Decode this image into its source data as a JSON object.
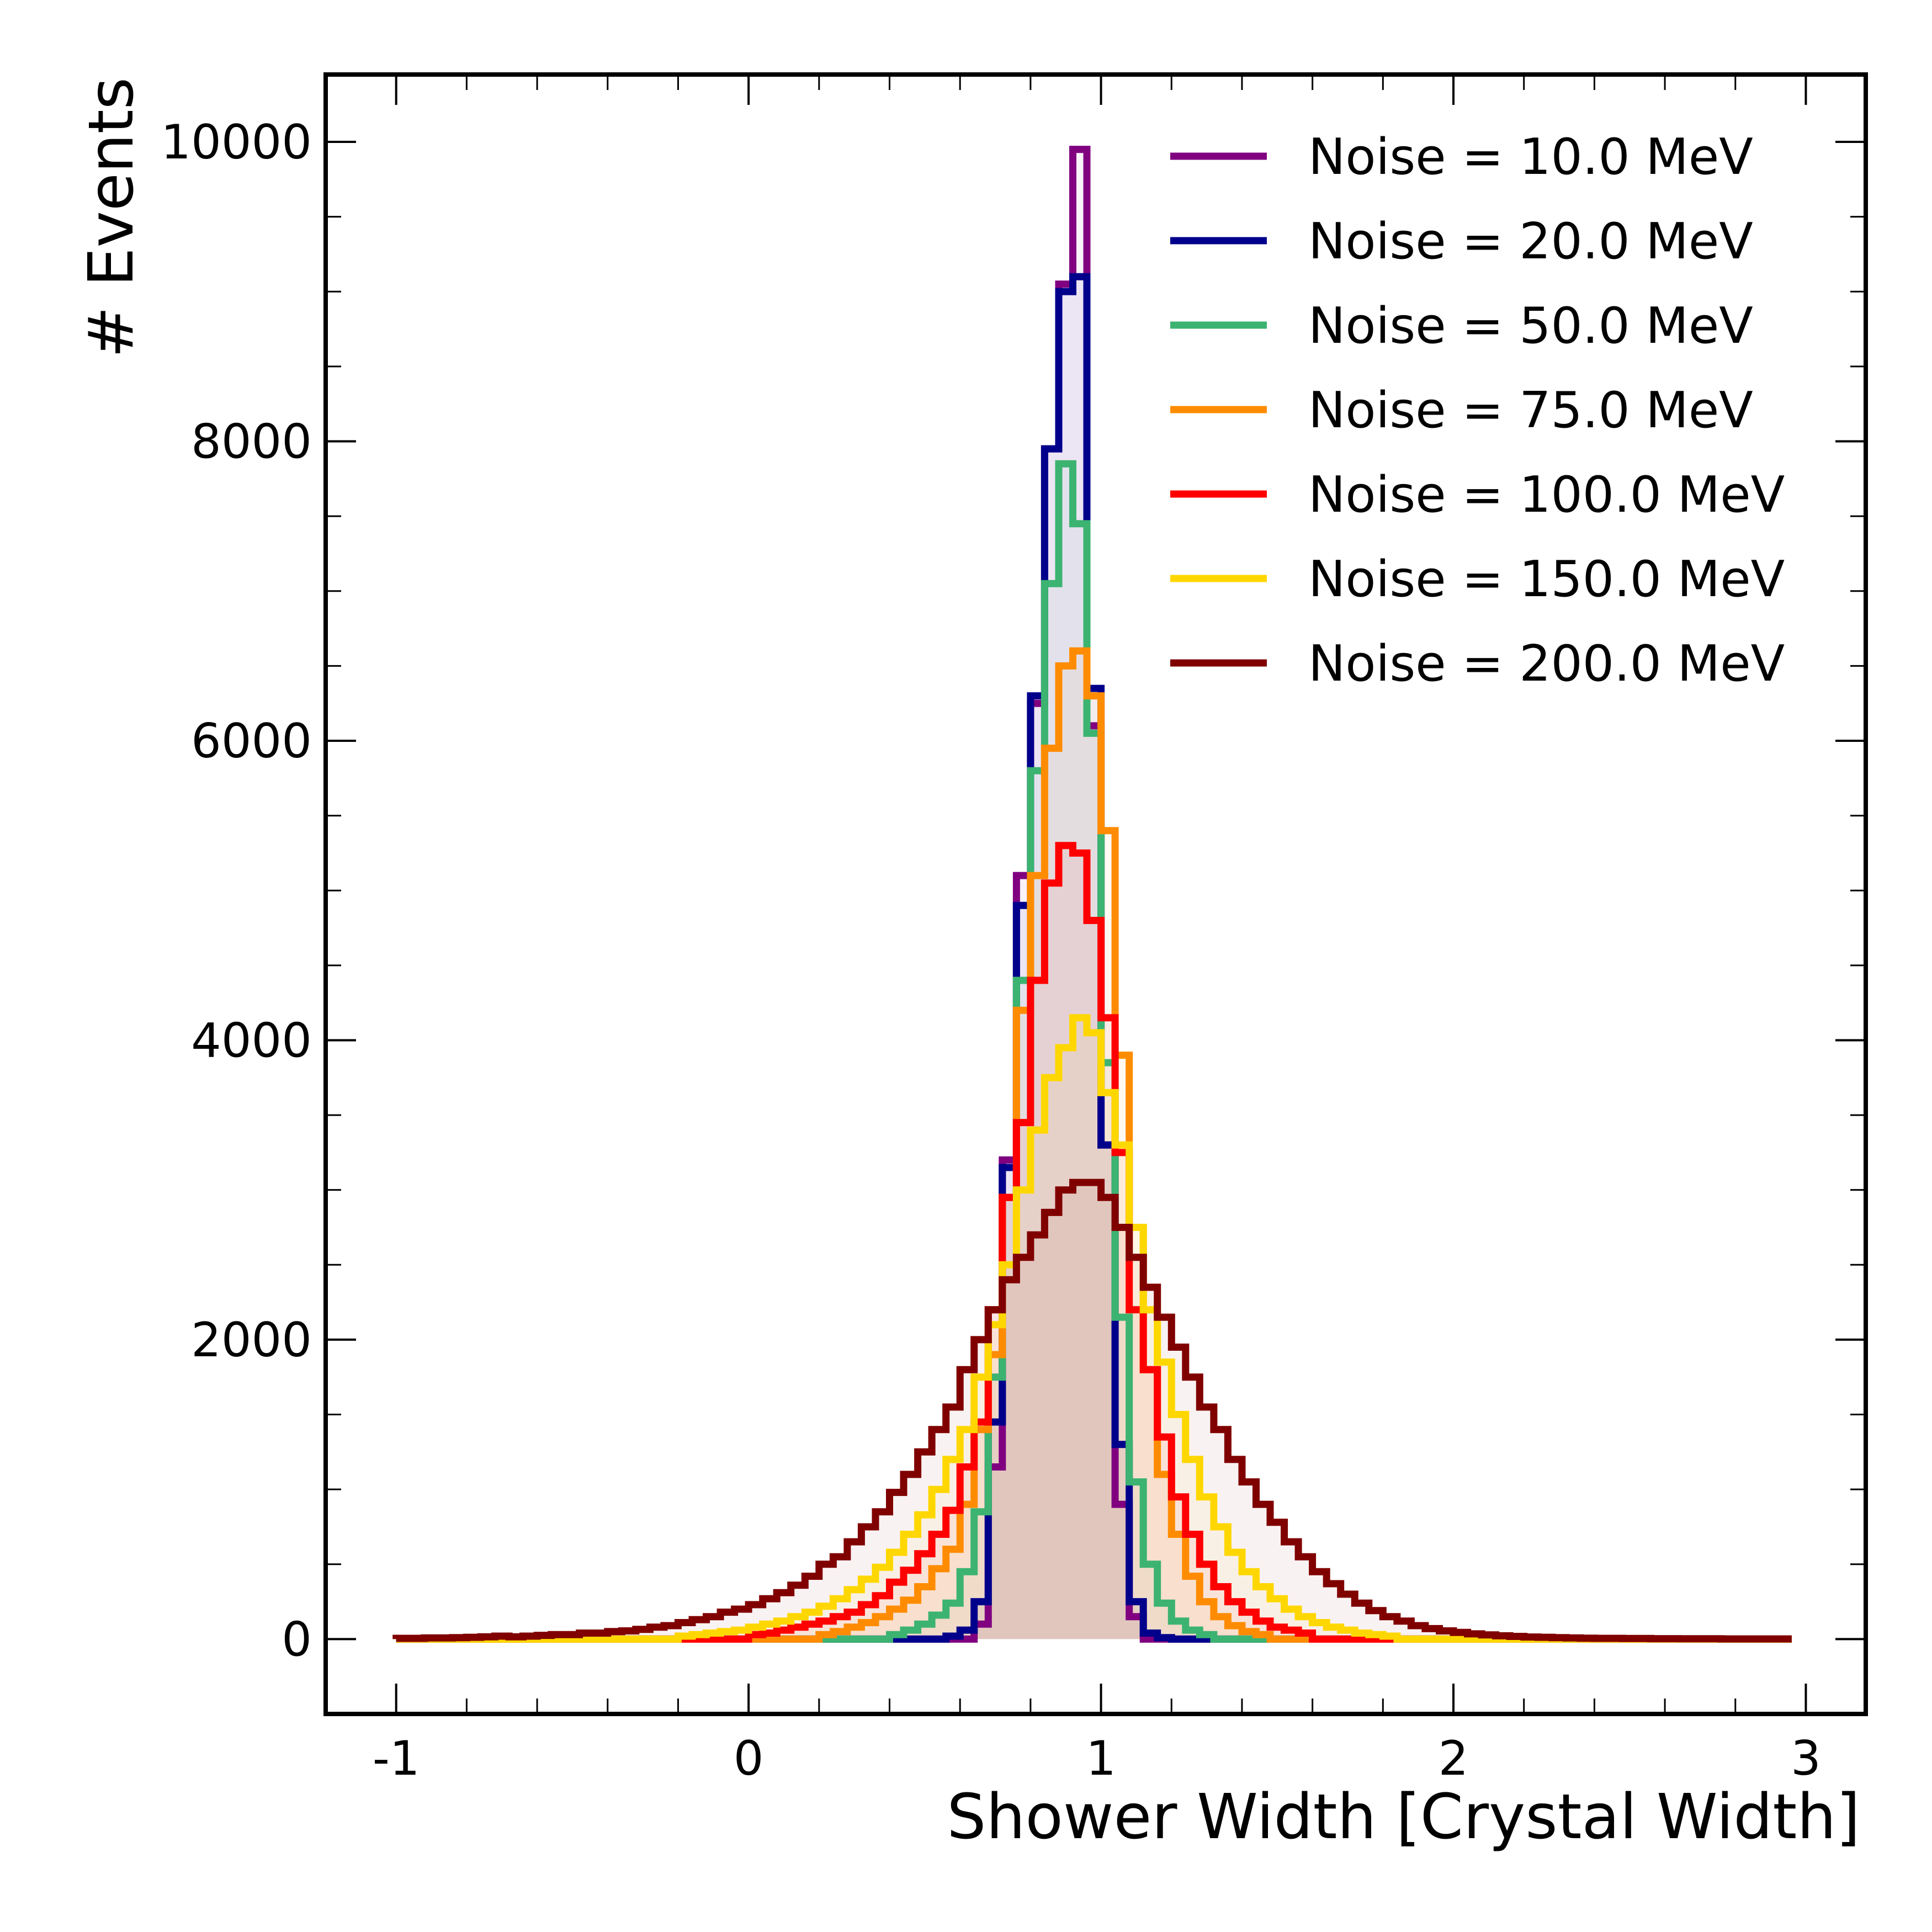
{
  "chart_data": {
    "type": "step-histogram",
    "xlabel": "Shower Width [Crystal Width]",
    "ylabel": "# Events",
    "xlim": [
      -1.2,
      3.17
    ],
    "ylim": [
      -500,
      10450
    ],
    "x_ticks": [
      -1,
      0,
      1,
      2,
      3
    ],
    "x_tick_labels": [
      "-1",
      "0",
      "1",
      "2",
      "3"
    ],
    "y_ticks": [
      0,
      2000,
      4000,
      6000,
      8000,
      10000
    ],
    "y_tick_labels": [
      "0",
      "2000",
      "4000",
      "6000",
      "8000",
      "10000"
    ],
    "legend_position": "top-right",
    "grid": false,
    "bins": {
      "start": -1.0,
      "width": 0.04,
      "count": 99
    },
    "series": [
      {
        "name": "Noise = 10.0 MeV",
        "color": "#800080",
        "bins": [
          [
            0.64,
            100
          ],
          [
            0.68,
            1150
          ],
          [
            0.72,
            3200
          ],
          [
            0.76,
            5100
          ],
          [
            0.8,
            6250
          ],
          [
            0.84,
            7950
          ],
          [
            0.88,
            9050
          ],
          [
            0.92,
            9950
          ],
          [
            0.96,
            6100
          ],
          [
            1.0,
            3300
          ],
          [
            1.04,
            900
          ],
          [
            1.08,
            150
          ]
        ]
      },
      {
        "name": "Noise = 20.0 MeV",
        "color": "#00008b",
        "bins": [
          [
            0.56,
            20
          ],
          [
            0.6,
            60
          ],
          [
            0.64,
            250
          ],
          [
            0.68,
            1450
          ],
          [
            0.72,
            3150
          ],
          [
            0.76,
            4900
          ],
          [
            0.8,
            6300
          ],
          [
            0.84,
            7950
          ],
          [
            0.88,
            9000
          ],
          [
            0.92,
            9100
          ],
          [
            0.96,
            6350
          ],
          [
            1.0,
            3300
          ],
          [
            1.04,
            1300
          ],
          [
            1.08,
            250
          ],
          [
            1.12,
            40
          ],
          [
            1.16,
            10
          ]
        ]
      },
      {
        "name": "Noise = 50.0 MeV",
        "color": "#3cb371",
        "bins": [
          [
            0.4,
            30
          ],
          [
            0.44,
            60
          ],
          [
            0.48,
            100
          ],
          [
            0.52,
            160
          ],
          [
            0.56,
            240
          ],
          [
            0.6,
            450
          ],
          [
            0.64,
            850
          ],
          [
            0.68,
            1750
          ],
          [
            0.72,
            2950
          ],
          [
            0.76,
            4400
          ],
          [
            0.8,
            5800
          ],
          [
            0.84,
            7050
          ],
          [
            0.88,
            7850
          ],
          [
            0.92,
            7450
          ],
          [
            0.96,
            6050
          ],
          [
            1.0,
            3850
          ],
          [
            1.04,
            2150
          ],
          [
            1.08,
            1050
          ],
          [
            1.12,
            500
          ],
          [
            1.16,
            240
          ],
          [
            1.2,
            120
          ],
          [
            1.24,
            60
          ],
          [
            1.28,
            30
          ]
        ]
      },
      {
        "name": "Noise = 75.0 MeV",
        "color": "#ff8c00",
        "bins": [
          [
            0.2,
            30
          ],
          [
            0.24,
            50
          ],
          [
            0.28,
            80
          ],
          [
            0.32,
            110
          ],
          [
            0.36,
            150
          ],
          [
            0.4,
            200
          ],
          [
            0.44,
            260
          ],
          [
            0.48,
            350
          ],
          [
            0.52,
            470
          ],
          [
            0.56,
            600
          ],
          [
            0.6,
            900
          ],
          [
            0.64,
            1400
          ],
          [
            0.68,
            1900
          ],
          [
            0.72,
            2950
          ],
          [
            0.76,
            4200
          ],
          [
            0.8,
            5100
          ],
          [
            0.84,
            5950
          ],
          [
            0.88,
            6500
          ],
          [
            0.92,
            6600
          ],
          [
            0.96,
            6300
          ],
          [
            1.0,
            5400
          ],
          [
            1.04,
            3900
          ],
          [
            1.08,
            2750
          ],
          [
            1.12,
            1800
          ],
          [
            1.16,
            1100
          ],
          [
            1.2,
            700
          ],
          [
            1.24,
            420
          ],
          [
            1.28,
            250
          ],
          [
            1.32,
            150
          ],
          [
            1.36,
            90
          ],
          [
            1.4,
            50
          ],
          [
            1.44,
            30
          ]
        ]
      },
      {
        "name": "Noise = 100.0 MeV",
        "color": "#ff0000",
        "bins": [
          [
            0.0,
            30
          ],
          [
            0.04,
            40
          ],
          [
            0.08,
            60
          ],
          [
            0.12,
            80
          ],
          [
            0.16,
            100
          ],
          [
            0.2,
            120
          ],
          [
            0.24,
            150
          ],
          [
            0.28,
            180
          ],
          [
            0.32,
            230
          ],
          [
            0.36,
            290
          ],
          [
            0.4,
            380
          ],
          [
            0.44,
            460
          ],
          [
            0.48,
            570
          ],
          [
            0.52,
            700
          ],
          [
            0.56,
            860
          ],
          [
            0.6,
            1150
          ],
          [
            0.64,
            1450
          ],
          [
            0.68,
            2200
          ],
          [
            0.72,
            2950
          ],
          [
            0.76,
            3450
          ],
          [
            0.8,
            4400
          ],
          [
            0.84,
            5050
          ],
          [
            0.88,
            5300
          ],
          [
            0.92,
            5250
          ],
          [
            0.96,
            4800
          ],
          [
            1.0,
            4150
          ],
          [
            1.04,
            3250
          ],
          [
            1.08,
            2200
          ],
          [
            1.12,
            1800
          ],
          [
            1.16,
            1350
          ],
          [
            1.2,
            950
          ],
          [
            1.24,
            700
          ],
          [
            1.28,
            500
          ],
          [
            1.32,
            350
          ],
          [
            1.36,
            250
          ],
          [
            1.4,
            180
          ],
          [
            1.44,
            120
          ],
          [
            1.48,
            80
          ],
          [
            1.52,
            60
          ],
          [
            1.56,
            40
          ]
        ]
      },
      {
        "name": "Noise = 150.0 MeV",
        "color": "#ffd700",
        "bins": [
          [
            -0.2,
            20
          ],
          [
            -0.16,
            30
          ],
          [
            -0.12,
            40
          ],
          [
            -0.08,
            50
          ],
          [
            -0.04,
            60
          ],
          [
            0.0,
            80
          ],
          [
            0.04,
            100
          ],
          [
            0.08,
            120
          ],
          [
            0.12,
            150
          ],
          [
            0.16,
            180
          ],
          [
            0.2,
            220
          ],
          [
            0.24,
            270
          ],
          [
            0.28,
            330
          ],
          [
            0.32,
            400
          ],
          [
            0.36,
            480
          ],
          [
            0.4,
            580
          ],
          [
            0.44,
            700
          ],
          [
            0.48,
            830
          ],
          [
            0.52,
            1000
          ],
          [
            0.56,
            1200
          ],
          [
            0.6,
            1400
          ],
          [
            0.64,
            1750
          ],
          [
            0.68,
            2100
          ],
          [
            0.72,
            2500
          ],
          [
            0.76,
            3000
          ],
          [
            0.8,
            3400
          ],
          [
            0.84,
            3750
          ],
          [
            0.88,
            3950
          ],
          [
            0.92,
            4150
          ],
          [
            0.96,
            4050
          ],
          [
            1.0,
            3650
          ],
          [
            1.04,
            3300
          ],
          [
            1.08,
            2750
          ],
          [
            1.12,
            2200
          ],
          [
            1.16,
            1850
          ],
          [
            1.2,
            1500
          ],
          [
            1.24,
            1200
          ],
          [
            1.28,
            950
          ],
          [
            1.32,
            750
          ],
          [
            1.36,
            580
          ],
          [
            1.4,
            450
          ],
          [
            1.44,
            350
          ],
          [
            1.48,
            270
          ],
          [
            1.52,
            200
          ],
          [
            1.56,
            150
          ],
          [
            1.6,
            110
          ],
          [
            1.64,
            80
          ],
          [
            1.68,
            60
          ],
          [
            1.72,
            40
          ],
          [
            1.76,
            30
          ],
          [
            1.8,
            20
          ]
        ]
      },
      {
        "name": "Noise = 200.0 MeV",
        "color": "#800000",
        "bins": [
          [
            -1.0,
            5
          ],
          [
            -0.96,
            5
          ],
          [
            -0.92,
            8
          ],
          [
            -0.88,
            8
          ],
          [
            -0.84,
            10
          ],
          [
            -0.8,
            12
          ],
          [
            -0.76,
            15
          ],
          [
            -0.72,
            20
          ],
          [
            -0.68,
            15
          ],
          [
            -0.64,
            20
          ],
          [
            -0.6,
            25
          ],
          [
            -0.56,
            30
          ],
          [
            -0.52,
            30
          ],
          [
            -0.48,
            40
          ],
          [
            -0.44,
            40
          ],
          [
            -0.4,
            50
          ],
          [
            -0.36,
            55
          ],
          [
            -0.32,
            65
          ],
          [
            -0.28,
            80
          ],
          [
            -0.24,
            90
          ],
          [
            -0.2,
            110
          ],
          [
            -0.16,
            130
          ],
          [
            -0.12,
            150
          ],
          [
            -0.08,
            180
          ],
          [
            -0.04,
            200
          ],
          [
            0.0,
            230
          ],
          [
            0.04,
            270
          ],
          [
            0.08,
            310
          ],
          [
            0.12,
            360
          ],
          [
            0.16,
            420
          ],
          [
            0.2,
            500
          ],
          [
            0.24,
            550
          ],
          [
            0.28,
            650
          ],
          [
            0.32,
            750
          ],
          [
            0.36,
            850
          ],
          [
            0.4,
            980
          ],
          [
            0.44,
            1100
          ],
          [
            0.48,
            1250
          ],
          [
            0.52,
            1400
          ],
          [
            0.56,
            1550
          ],
          [
            0.6,
            1800
          ],
          [
            0.64,
            2000
          ],
          [
            0.68,
            2200
          ],
          [
            0.72,
            2400
          ],
          [
            0.76,
            2550
          ],
          [
            0.8,
            2700
          ],
          [
            0.84,
            2850
          ],
          [
            0.88,
            3000
          ],
          [
            0.92,
            3050
          ],
          [
            0.96,
            3050
          ],
          [
            1.0,
            2950
          ],
          [
            1.04,
            2750
          ],
          [
            1.08,
            2550
          ],
          [
            1.12,
            2350
          ],
          [
            1.16,
            2150
          ],
          [
            1.2,
            1950
          ],
          [
            1.24,
            1750
          ],
          [
            1.28,
            1550
          ],
          [
            1.32,
            1400
          ],
          [
            1.36,
            1200
          ],
          [
            1.4,
            1050
          ],
          [
            1.44,
            900
          ],
          [
            1.48,
            780
          ],
          [
            1.52,
            650
          ],
          [
            1.56,
            550
          ],
          [
            1.6,
            450
          ],
          [
            1.64,
            370
          ],
          [
            1.68,
            300
          ],
          [
            1.72,
            240
          ],
          [
            1.76,
            190
          ],
          [
            1.8,
            150
          ],
          [
            1.84,
            120
          ],
          [
            1.88,
            90
          ],
          [
            1.92,
            70
          ],
          [
            1.96,
            55
          ],
          [
            2.0,
            45
          ],
          [
            2.04,
            35
          ],
          [
            2.08,
            28
          ],
          [
            2.12,
            22
          ],
          [
            2.16,
            18
          ],
          [
            2.2,
            14
          ],
          [
            2.24,
            12
          ],
          [
            2.28,
            10
          ],
          [
            2.32,
            8
          ],
          [
            2.36,
            6
          ],
          [
            2.4,
            5
          ],
          [
            2.44,
            5
          ],
          [
            2.48,
            4
          ],
          [
            2.52,
            4
          ],
          [
            2.56,
            3
          ],
          [
            2.6,
            3
          ],
          [
            2.64,
            2
          ],
          [
            2.68,
            2
          ],
          [
            2.72,
            2
          ],
          [
            2.76,
            1
          ],
          [
            2.8,
            1
          ],
          [
            2.84,
            1
          ],
          [
            2.88,
            1
          ],
          [
            2.92,
            1
          ],
          [
            2.96,
            0
          ]
        ]
      }
    ]
  }
}
